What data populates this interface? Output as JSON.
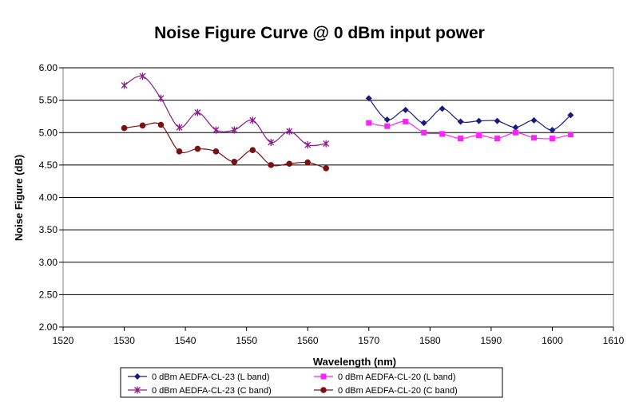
{
  "chart_data": {
    "type": "line",
    "title": "Noise Figure Curve @ 0 dBm input power",
    "xlabel": "Wavelength (nm)",
    "ylabel": "Noise Figure (dB)",
    "xlim": [
      1520,
      1610
    ],
    "ylim": [
      2.0,
      6.0
    ],
    "x_ticks": [
      "1520",
      "1530",
      "1540",
      "1550",
      "1560",
      "1570",
      "1580",
      "1590",
      "1600",
      "1610"
    ],
    "y_ticks": [
      "2.00",
      "2.50",
      "3.00",
      "3.50",
      "4.00",
      "4.50",
      "5.00",
      "5.50",
      "6.00"
    ],
    "grid": "horizontal",
    "legend_position": "bottom",
    "series": [
      {
        "name": "0 dBm AEDFA-CL-23 (L band)",
        "color": "#1a1a80",
        "marker": "diamond",
        "x": [
          1570,
          1573,
          1576,
          1579,
          1582,
          1585,
          1588,
          1591,
          1594,
          1597,
          1600,
          1603
        ],
        "y": [
          5.53,
          5.2,
          5.35,
          5.15,
          5.37,
          5.17,
          5.18,
          5.18,
          5.08,
          5.19,
          5.04,
          5.27
        ]
      },
      {
        "name": "0 dBm AEDFA-CL-20 (L band)",
        "color": "#ff22ff",
        "marker": "square",
        "x": [
          1570,
          1573,
          1576,
          1579,
          1582,
          1585,
          1588,
          1591,
          1594,
          1597,
          1600,
          1603
        ],
        "y": [
          5.15,
          5.1,
          5.17,
          5.0,
          4.98,
          4.91,
          4.96,
          4.91,
          5.0,
          4.92,
          4.91,
          4.97
        ]
      },
      {
        "name": "0 dBm AEDFA-CL-23 (C band)",
        "color": "#8a1a8a",
        "marker": "star",
        "x": [
          1530,
          1533,
          1536,
          1539,
          1542,
          1545,
          1548,
          1551,
          1554,
          1557,
          1560,
          1563
        ],
        "y": [
          5.73,
          5.87,
          5.53,
          5.08,
          5.31,
          5.04,
          5.04,
          5.19,
          4.85,
          5.02,
          4.81,
          4.83
        ]
      },
      {
        "name": "0 dBm AEDFA-CL-20 (C band)",
        "color": "#7a1010",
        "marker": "circle",
        "x": [
          1530,
          1533,
          1536,
          1539,
          1542,
          1545,
          1548,
          1551,
          1554,
          1557,
          1560,
          1563
        ],
        "y": [
          5.07,
          5.11,
          5.12,
          4.71,
          4.75,
          4.71,
          4.55,
          4.73,
          4.5,
          4.52,
          4.54,
          4.45
        ]
      }
    ]
  }
}
